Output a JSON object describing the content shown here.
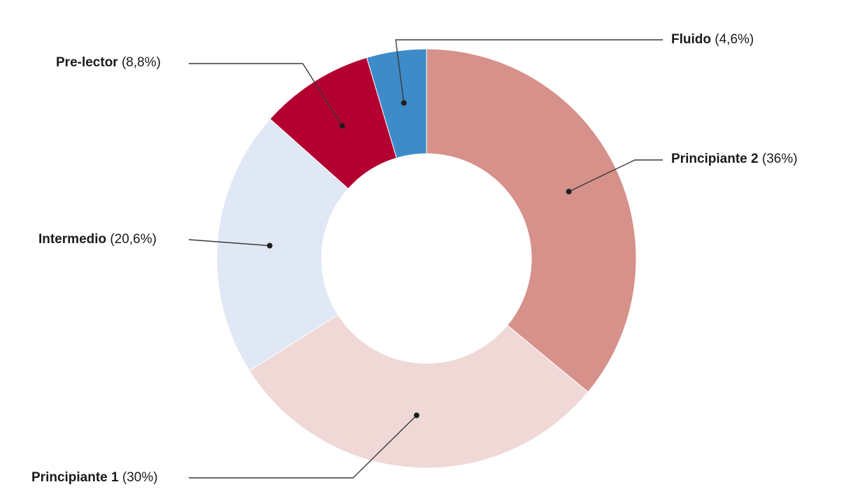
{
  "chart_data": {
    "type": "pie",
    "variant": "donut",
    "title": "",
    "slices": [
      {
        "name": "Principiante 2",
        "value": 36,
        "display": "(36%)",
        "color": "#d6918a"
      },
      {
        "name": "Principiante 1",
        "value": 30,
        "display": "(30%)",
        "color": "#efd8d5"
      },
      {
        "name": "Intermedio",
        "value": 20.6,
        "display": "(20,6%)",
        "color": "#e1e8f5"
      },
      {
        "name": "Pre-lector",
        "value": 8.8,
        "display": "(8,8%)",
        "color": "#b30030"
      },
      {
        "name": "Fluido",
        "value": 4.6,
        "display": "(4,6%)",
        "color": "#3d8bc8"
      }
    ],
    "legend": "none",
    "start_angle": "12 o'clock",
    "direction": "clockwise"
  }
}
